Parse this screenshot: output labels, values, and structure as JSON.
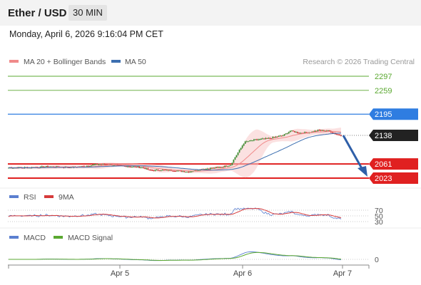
{
  "header": {
    "pair": "Ether / USD",
    "timeframe": "30 MIN"
  },
  "datetime": "Monday, April 6, 2026 9:16:04 PM CET",
  "legend": {
    "ma20": "MA 20 + Bollinger Bands",
    "ma50": "MA 50",
    "copyright": "Research © 2026 Trading Central"
  },
  "colors": {
    "up": "#3a8a2e",
    "down": "#c62828",
    "ma20": "#f08a8a",
    "ma50": "#3c6fb0",
    "support": "#e02020",
    "resistance": "#2f7de1",
    "target_green": "#5aa830",
    "arrow": "#2f5fa8",
    "rsi": "#5b7fd0",
    "rsi_ma": "#d63b3b",
    "macd": "#5b7fd0",
    "macd_signal": "#5aa830",
    "last_price": "#222222"
  },
  "chart_data": [
    {
      "type": "candlestick",
      "x_ticks": [
        "Apr 5",
        "Apr 6",
        "Apr 7"
      ],
      "levels": [
        {
          "value": 2297,
          "color": "#5aa830"
        },
        {
          "value": 2259,
          "color": "#5aa830"
        },
        {
          "value": 2195,
          "color": "#2f7de1"
        },
        {
          "value": 2061,
          "color": "#e02020"
        },
        {
          "value": 2023,
          "color": "#e02020"
        }
      ],
      "last_price": 2138,
      "forecast_target": 2023,
      "series": [
        {
          "name": "MA 20 + Bollinger Bands"
        },
        {
          "name": "MA 50"
        }
      ],
      "close_keypoints": [
        [
          0,
          2051
        ],
        [
          20,
          2051
        ],
        [
          40,
          2052
        ],
        [
          55,
          2054
        ],
        [
          70,
          2053
        ],
        [
          90,
          2052
        ],
        [
          110,
          2055
        ],
        [
          125,
          2060
        ],
        [
          140,
          2060
        ],
        [
          160,
          2056
        ],
        [
          175,
          2054
        ],
        [
          190,
          2052
        ],
        [
          200,
          2044
        ],
        [
          220,
          2045
        ],
        [
          240,
          2043
        ],
        [
          255,
          2040
        ],
        [
          275,
          2047
        ],
        [
          300,
          2052
        ],
        [
          315,
          2058
        ],
        [
          325,
          2090
        ],
        [
          335,
          2120
        ],
        [
          350,
          2126
        ],
        [
          370,
          2130
        ],
        [
          390,
          2138
        ],
        [
          400,
          2150
        ],
        [
          415,
          2144
        ],
        [
          430,
          2147
        ],
        [
          440,
          2152
        ],
        [
          455,
          2150
        ],
        [
          465,
          2141
        ],
        [
          472,
          2138
        ]
      ]
    },
    {
      "type": "line",
      "title": "RSI",
      "series": [
        {
          "name": "RSI"
        },
        {
          "name": "9MA"
        }
      ],
      "y_ticks": [
        70,
        50,
        30
      ]
    },
    {
      "type": "line",
      "title": "MACD",
      "series": [
        {
          "name": "MACD"
        },
        {
          "name": "MACD Signal"
        }
      ],
      "y_ticks": [
        0
      ]
    }
  ]
}
